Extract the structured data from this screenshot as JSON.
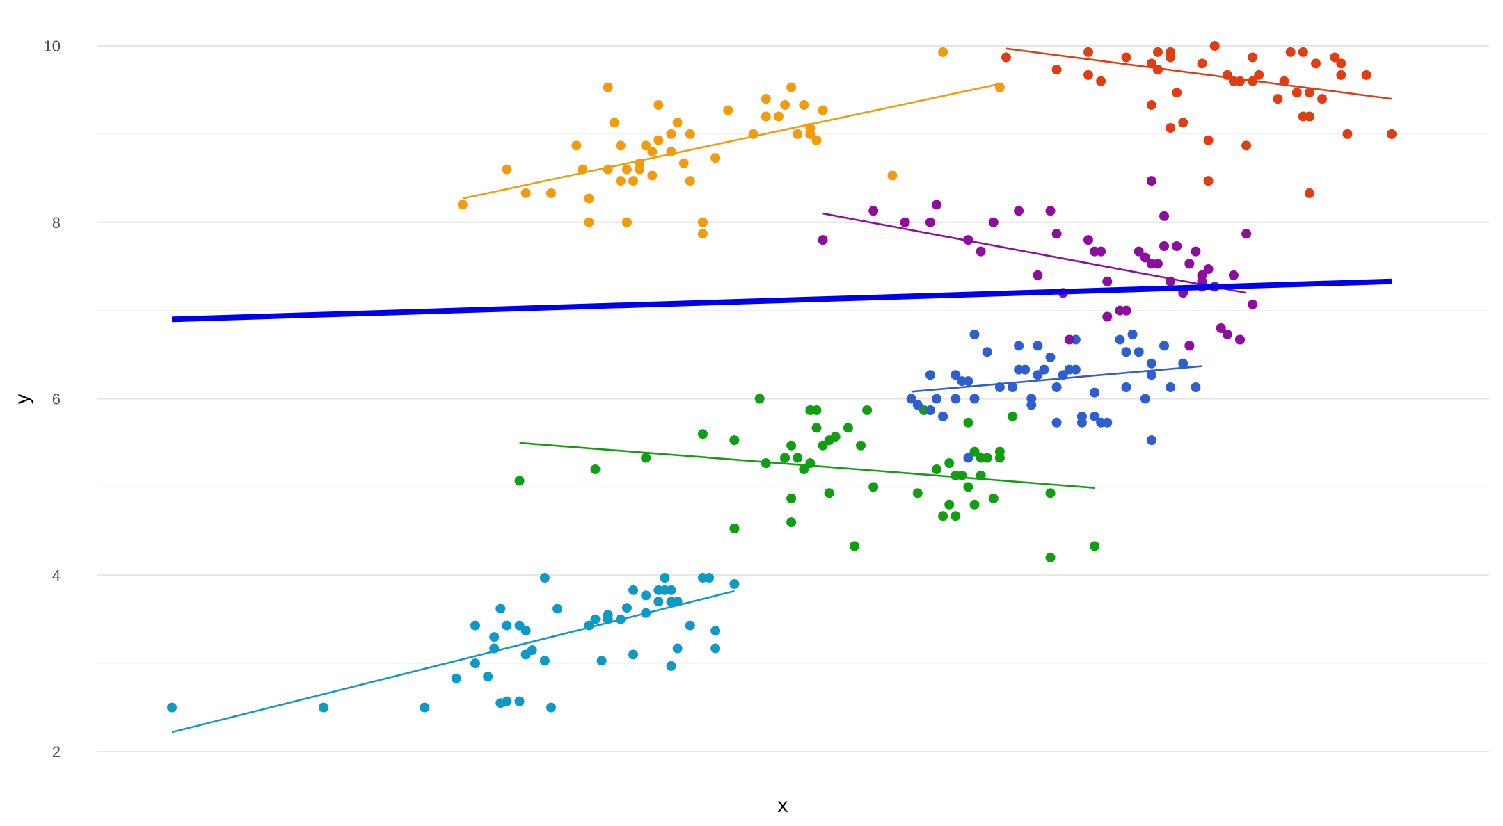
{
  "chart_data": {
    "type": "scatter",
    "title": "",
    "xlabel": "x",
    "ylabel": "y",
    "xlim": [
      0,
      20
    ],
    "ylim": [
      1.85,
      10.25
    ],
    "y_ticks": [
      2,
      4,
      6,
      8,
      10
    ],
    "x_ticks_shown": false,
    "grid": true,
    "legend": "none",
    "overall_fit": {
      "color": "#0000ee",
      "x": [
        0.7,
        20
      ],
      "y": [
        6.9,
        7.33
      ]
    },
    "series": [
      {
        "color": "#0e9ac7",
        "fit": {
          "x": [
            0.7,
            9.6
          ],
          "y": [
            2.22,
            3.82
          ]
        },
        "points": [
          [
            0.7,
            2.5
          ],
          [
            3.1,
            2.5
          ],
          [
            4.7,
            2.5
          ],
          [
            5.2,
            2.83
          ],
          [
            5.5,
            3.43
          ],
          [
            5.5,
            3.0
          ],
          [
            5.7,
            2.85
          ],
          [
            5.8,
            3.3
          ],
          [
            5.8,
            3.17
          ],
          [
            5.9,
            3.62
          ],
          [
            5.9,
            2.55
          ],
          [
            6.0,
            2.57
          ],
          [
            6.0,
            3.43
          ],
          [
            6.2,
            2.57
          ],
          [
            6.2,
            3.43
          ],
          [
            6.3,
            3.37
          ],
          [
            6.3,
            3.1
          ],
          [
            6.4,
            3.15
          ],
          [
            6.6,
            3.03
          ],
          [
            6.6,
            3.97
          ],
          [
            6.8,
            3.62
          ],
          [
            6.7,
            2.5
          ],
          [
            7.3,
            3.43
          ],
          [
            7.4,
            3.5
          ],
          [
            7.5,
            3.03
          ],
          [
            7.6,
            3.55
          ],
          [
            7.6,
            3.5
          ],
          [
            7.8,
            3.5
          ],
          [
            7.9,
            3.63
          ],
          [
            8.0,
            3.83
          ],
          [
            8.0,
            3.1
          ],
          [
            8.2,
            3.57
          ],
          [
            8.2,
            3.77
          ],
          [
            8.4,
            3.7
          ],
          [
            8.4,
            3.83
          ],
          [
            8.5,
            3.83
          ],
          [
            8.5,
            3.97
          ],
          [
            8.6,
            3.7
          ],
          [
            8.6,
            3.83
          ],
          [
            8.6,
            2.97
          ],
          [
            8.7,
            3.17
          ],
          [
            8.7,
            3.7
          ],
          [
            8.9,
            3.43
          ],
          [
            9.1,
            3.97
          ],
          [
            9.2,
            3.97
          ],
          [
            9.3,
            3.37
          ],
          [
            9.3,
            3.17
          ],
          [
            9.6,
            3.9
          ]
        ]
      },
      {
        "color": "#109f10",
        "fit": {
          "x": [
            6.2,
            15.3
          ],
          "y": [
            5.5,
            4.99
          ]
        },
        "points": [
          [
            6.2,
            5.07
          ],
          [
            7.4,
            5.2
          ],
          [
            8.2,
            5.33
          ],
          [
            9.1,
            5.6
          ],
          [
            9.6,
            5.53
          ],
          [
            9.6,
            4.53
          ],
          [
            10.0,
            6.0
          ],
          [
            10.1,
            5.27
          ],
          [
            10.4,
            5.33
          ],
          [
            10.5,
            5.47
          ],
          [
            10.5,
            4.6
          ],
          [
            10.5,
            4.87
          ],
          [
            10.6,
            5.33
          ],
          [
            10.7,
            5.2
          ],
          [
            10.8,
            5.27
          ],
          [
            10.8,
            5.87
          ],
          [
            10.9,
            5.67
          ],
          [
            10.9,
            5.87
          ],
          [
            11.0,
            5.47
          ],
          [
            11.1,
            4.93
          ],
          [
            11.1,
            5.53
          ],
          [
            11.2,
            5.57
          ],
          [
            11.4,
            5.67
          ],
          [
            11.5,
            4.33
          ],
          [
            11.6,
            5.47
          ],
          [
            11.7,
            5.87
          ],
          [
            11.8,
            5.0
          ],
          [
            12.5,
            4.93
          ],
          [
            12.6,
            5.87
          ],
          [
            12.8,
            5.2
          ],
          [
            12.9,
            4.67
          ],
          [
            13.0,
            5.27
          ],
          [
            13.0,
            4.8
          ],
          [
            13.1,
            5.13
          ],
          [
            13.1,
            4.67
          ],
          [
            13.2,
            5.13
          ],
          [
            13.3,
            5.0
          ],
          [
            13.3,
            5.73
          ],
          [
            13.4,
            5.4
          ],
          [
            13.4,
            4.8
          ],
          [
            13.5,
            5.33
          ],
          [
            13.5,
            5.13
          ],
          [
            13.6,
            5.33
          ],
          [
            13.6,
            5.33
          ],
          [
            13.7,
            4.87
          ],
          [
            13.8,
            5.33
          ],
          [
            13.8,
            5.4
          ],
          [
            14.0,
            5.8
          ],
          [
            14.6,
            4.93
          ],
          [
            14.6,
            4.2
          ],
          [
            15.3,
            4.33
          ]
        ]
      },
      {
        "color": "#2f5fcf",
        "fit": {
          "x": [
            12.4,
            17.0
          ],
          "y": [
            6.08,
            6.37
          ]
        },
        "points": [
          [
            12.4,
            6.0
          ],
          [
            12.5,
            5.93
          ],
          [
            12.7,
            6.27
          ],
          [
            12.7,
            5.87
          ],
          [
            12.8,
            6.0
          ],
          [
            12.9,
            5.8
          ],
          [
            13.1,
            6.0
          ],
          [
            13.1,
            6.27
          ],
          [
            13.2,
            6.2
          ],
          [
            13.3,
            6.2
          ],
          [
            13.4,
            6.73
          ],
          [
            13.4,
            6.0
          ],
          [
            13.6,
            6.53
          ],
          [
            13.8,
            6.13
          ],
          [
            14.0,
            6.13
          ],
          [
            14.1,
            6.33
          ],
          [
            14.1,
            6.6
          ],
          [
            14.2,
            6.33
          ],
          [
            14.3,
            5.93
          ],
          [
            14.3,
            6.0
          ],
          [
            14.4,
            6.6
          ],
          [
            14.4,
            6.27
          ],
          [
            14.5,
            6.33
          ],
          [
            14.6,
            6.47
          ],
          [
            14.7,
            6.13
          ],
          [
            14.7,
            5.73
          ],
          [
            14.8,
            6.27
          ],
          [
            14.9,
            6.33
          ],
          [
            15.0,
            6.67
          ],
          [
            15.0,
            6.33
          ],
          [
            15.1,
            5.8
          ],
          [
            15.1,
            5.73
          ],
          [
            15.3,
            5.8
          ],
          [
            15.3,
            6.07
          ],
          [
            15.4,
            5.73
          ],
          [
            15.5,
            5.73
          ],
          [
            15.7,
            6.67
          ],
          [
            15.8,
            6.13
          ],
          [
            15.8,
            6.53
          ],
          [
            15.9,
            6.73
          ],
          [
            16.0,
            6.53
          ],
          [
            16.1,
            6.0
          ],
          [
            16.2,
            6.4
          ],
          [
            16.2,
            6.27
          ],
          [
            16.4,
            6.6
          ],
          [
            16.5,
            6.13
          ],
          [
            16.7,
            6.4
          ],
          [
            16.9,
            6.13
          ],
          [
            16.2,
            5.53
          ],
          [
            13.3,
            5.33
          ]
        ]
      },
      {
        "color": "#f39c0b",
        "fit": {
          "x": [
            5.3,
            13.8
          ],
          "y": [
            8.27,
            9.57
          ]
        },
        "points": [
          [
            5.3,
            8.2
          ],
          [
            6.0,
            8.6
          ],
          [
            6.3,
            8.33
          ],
          [
            6.7,
            8.33
          ],
          [
            7.1,
            8.87
          ],
          [
            7.2,
            8.6
          ],
          [
            7.3,
            8.0
          ],
          [
            7.3,
            8.27
          ],
          [
            7.6,
            9.53
          ],
          [
            7.6,
            8.6
          ],
          [
            7.7,
            9.13
          ],
          [
            7.8,
            8.87
          ],
          [
            7.8,
            8.47
          ],
          [
            7.9,
            8.6
          ],
          [
            7.9,
            8.0
          ],
          [
            8.0,
            8.47
          ],
          [
            8.1,
            8.67
          ],
          [
            8.1,
            8.6
          ],
          [
            8.2,
            8.87
          ],
          [
            8.3,
            8.8
          ],
          [
            8.3,
            8.53
          ],
          [
            8.4,
            9.33
          ],
          [
            8.4,
            8.93
          ],
          [
            8.6,
            8.8
          ],
          [
            8.6,
            9.0
          ],
          [
            8.7,
            9.13
          ],
          [
            8.8,
            8.67
          ],
          [
            8.9,
            8.47
          ],
          [
            8.9,
            9.0
          ],
          [
            9.1,
            8.0
          ],
          [
            9.1,
            7.87
          ],
          [
            9.3,
            8.73
          ],
          [
            9.5,
            9.27
          ],
          [
            9.9,
            9.0
          ],
          [
            10.1,
            9.2
          ],
          [
            10.1,
            9.4
          ],
          [
            10.3,
            9.2
          ],
          [
            10.4,
            9.33
          ],
          [
            10.5,
            9.53
          ],
          [
            10.6,
            9.0
          ],
          [
            10.7,
            9.33
          ],
          [
            10.8,
            9.07
          ],
          [
            10.8,
            9.0
          ],
          [
            10.9,
            8.93
          ],
          [
            11.0,
            9.27
          ],
          [
            12.1,
            8.53
          ],
          [
            12.9,
            9.93
          ],
          [
            13.8,
            9.53
          ]
        ]
      },
      {
        "color": "#8e0c9f",
        "fit": {
          "x": [
            11.0,
            17.7
          ],
          "y": [
            8.1,
            7.2
          ]
        },
        "points": [
          [
            11.0,
            7.8
          ],
          [
            11.8,
            8.13
          ],
          [
            12.3,
            8.0
          ],
          [
            12.7,
            8.0
          ],
          [
            12.8,
            8.2
          ],
          [
            13.3,
            7.8
          ],
          [
            13.5,
            7.67
          ],
          [
            13.7,
            8.0
          ],
          [
            14.1,
            8.13
          ],
          [
            14.4,
            7.4
          ],
          [
            14.6,
            8.13
          ],
          [
            14.7,
            7.87
          ],
          [
            14.8,
            7.2
          ],
          [
            14.9,
            6.67
          ],
          [
            15.2,
            7.8
          ],
          [
            15.3,
            7.67
          ],
          [
            15.4,
            7.67
          ],
          [
            15.5,
            7.33
          ],
          [
            15.5,
            6.93
          ],
          [
            15.7,
            7.0
          ],
          [
            15.8,
            7.0
          ],
          [
            16.0,
            7.67
          ],
          [
            16.1,
            7.6
          ],
          [
            16.2,
            7.53
          ],
          [
            16.3,
            7.53
          ],
          [
            16.4,
            7.73
          ],
          [
            16.5,
            7.33
          ],
          [
            16.6,
            7.73
          ],
          [
            16.7,
            7.2
          ],
          [
            16.8,
            7.53
          ],
          [
            16.9,
            7.67
          ],
          [
            16.2,
            8.47
          ],
          [
            16.4,
            8.07
          ],
          [
            16.8,
            6.6
          ],
          [
            17.0,
            7.4
          ],
          [
            17.0,
            7.33
          ],
          [
            17.0,
            7.27
          ],
          [
            17.1,
            7.47
          ],
          [
            17.2,
            7.27
          ],
          [
            17.3,
            6.8
          ],
          [
            17.4,
            6.73
          ],
          [
            17.5,
            7.4
          ],
          [
            17.6,
            6.67
          ],
          [
            17.7,
            7.87
          ],
          [
            17.8,
            7.07
          ],
          [
            17.6,
            6.67
          ]
        ]
      },
      {
        "color": "#e03d12",
        "fit": {
          "x": [
            13.9,
            20.0
          ],
          "y": [
            9.97,
            9.4
          ]
        },
        "points": [
          [
            13.9,
            9.87
          ],
          [
            14.7,
            9.73
          ],
          [
            15.2,
            9.93
          ],
          [
            15.2,
            9.67
          ],
          [
            15.4,
            9.6
          ],
          [
            15.8,
            9.87
          ],
          [
            16.2,
            9.8
          ],
          [
            16.3,
            9.93
          ],
          [
            16.3,
            9.73
          ],
          [
            16.5,
            9.87
          ],
          [
            16.5,
            9.93
          ],
          [
            16.2,
            9.33
          ],
          [
            16.5,
            9.07
          ],
          [
            16.6,
            9.47
          ],
          [
            16.7,
            9.13
          ],
          [
            17.0,
            9.8
          ],
          [
            17.1,
            8.93
          ],
          [
            17.1,
            8.47
          ],
          [
            17.2,
            10.0
          ],
          [
            17.4,
            9.67
          ],
          [
            17.5,
            9.6
          ],
          [
            17.6,
            9.6
          ],
          [
            17.8,
            9.6
          ],
          [
            17.8,
            9.87
          ],
          [
            17.9,
            9.67
          ],
          [
            17.7,
            8.87
          ],
          [
            18.2,
            9.4
          ],
          [
            18.3,
            9.6
          ],
          [
            18.4,
            9.93
          ],
          [
            18.5,
            9.47
          ],
          [
            18.6,
            9.2
          ],
          [
            18.6,
            9.93
          ],
          [
            18.7,
            9.2
          ],
          [
            18.7,
            9.47
          ],
          [
            18.7,
            8.33
          ],
          [
            18.8,
            9.8
          ],
          [
            18.9,
            9.4
          ],
          [
            19.1,
            9.87
          ],
          [
            19.2,
            9.67
          ],
          [
            19.2,
            9.8
          ],
          [
            19.3,
            9.0
          ],
          [
            19.6,
            9.67
          ],
          [
            20.0,
            9.0
          ]
        ]
      }
    ]
  }
}
